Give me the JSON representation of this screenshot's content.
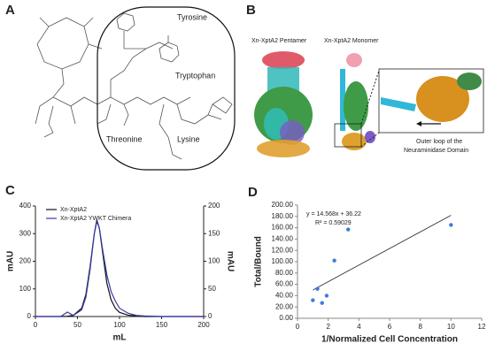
{
  "panel_a": {
    "letter": "A",
    "labels": [
      "Tyrosine",
      "Tryptophan",
      "Threonine",
      "Lysine"
    ]
  },
  "panel_b": {
    "letter": "B",
    "labels": [
      "Xn-XptA2 Pentamer",
      "Xn-XptA2 Monomer",
      "Outer loop of the",
      "Neuraminidase Domain"
    ]
  },
  "chart_data": [
    {
      "type": "line",
      "panel_label": "C",
      "xlabel": "mL",
      "ylabel": "mAU",
      "y2label": "mAU",
      "x": [
        0,
        30,
        38,
        45,
        55,
        60,
        65,
        70,
        73,
        76,
        80,
        85,
        90,
        95,
        100,
        110,
        120,
        130,
        150,
        200
      ],
      "series": [
        {
          "name": "Xn-XptA2",
          "color": "#111111",
          "values": [
            0,
            0,
            1,
            4,
            30,
            80,
            180,
            300,
            350,
            320,
            230,
            120,
            60,
            30,
            15,
            5,
            2,
            0,
            0,
            0
          ]
        },
        {
          "name": "Xn-XptA2 YWKT Chimera",
          "color": "#3a3aa8",
          "axis": "y2",
          "values": [
            0,
            0,
            8,
            2,
            12,
            35,
            85,
            150,
            172,
            160,
            120,
            75,
            45,
            28,
            15,
            6,
            2,
            1,
            0,
            0
          ]
        }
      ],
      "xlim": [
        0,
        200
      ],
      "xticks": [
        0,
        50,
        100,
        150,
        200
      ],
      "ylim": [
        0,
        400
      ],
      "yticks": [
        0,
        100,
        200,
        300,
        400
      ],
      "y2lim": [
        0,
        200
      ],
      "y2ticks": [
        0,
        50,
        100,
        150,
        200
      ]
    },
    {
      "type": "scatter",
      "panel_label": "D",
      "xlabel": "1/Normalized Cell Concentration",
      "ylabel": "Total/Bound",
      "x": [
        1.0,
        1.3,
        1.6,
        1.9,
        2.4,
        3.3,
        10.0
      ],
      "values": [
        32,
        52,
        27,
        40,
        102,
        157,
        165
      ],
      "color": "#3b7dd8",
      "trendline": {
        "x": [
          1.0,
          10.0
        ],
        "values": [
          50,
          182
        ],
        "color": "#333333"
      },
      "annotations": [
        "y = 14.568x + 36.22",
        "R² = 0.59029"
      ],
      "xlim": [
        0,
        12
      ],
      "xticks": [
        0,
        2,
        4,
        6,
        8,
        10,
        12
      ],
      "ylim": [
        0,
        200
      ],
      "yticks": [
        {
          "value": 0,
          "label": "0.00"
        },
        {
          "value": 20,
          "label": "20.00"
        },
        {
          "value": 40,
          "label": "40.00"
        },
        {
          "value": 60,
          "label": "60.00"
        },
        {
          "value": 80,
          "label": "80.00"
        },
        {
          "value": 100,
          "label": "100.00"
        },
        {
          "value": 120,
          "label": "120.00"
        },
        {
          "value": 140,
          "label": "140.00"
        },
        {
          "value": 160,
          "label": "160.00"
        },
        {
          "value": 180,
          "label": "180.00"
        },
        {
          "value": 200,
          "label": "200.00"
        }
      ]
    }
  ]
}
